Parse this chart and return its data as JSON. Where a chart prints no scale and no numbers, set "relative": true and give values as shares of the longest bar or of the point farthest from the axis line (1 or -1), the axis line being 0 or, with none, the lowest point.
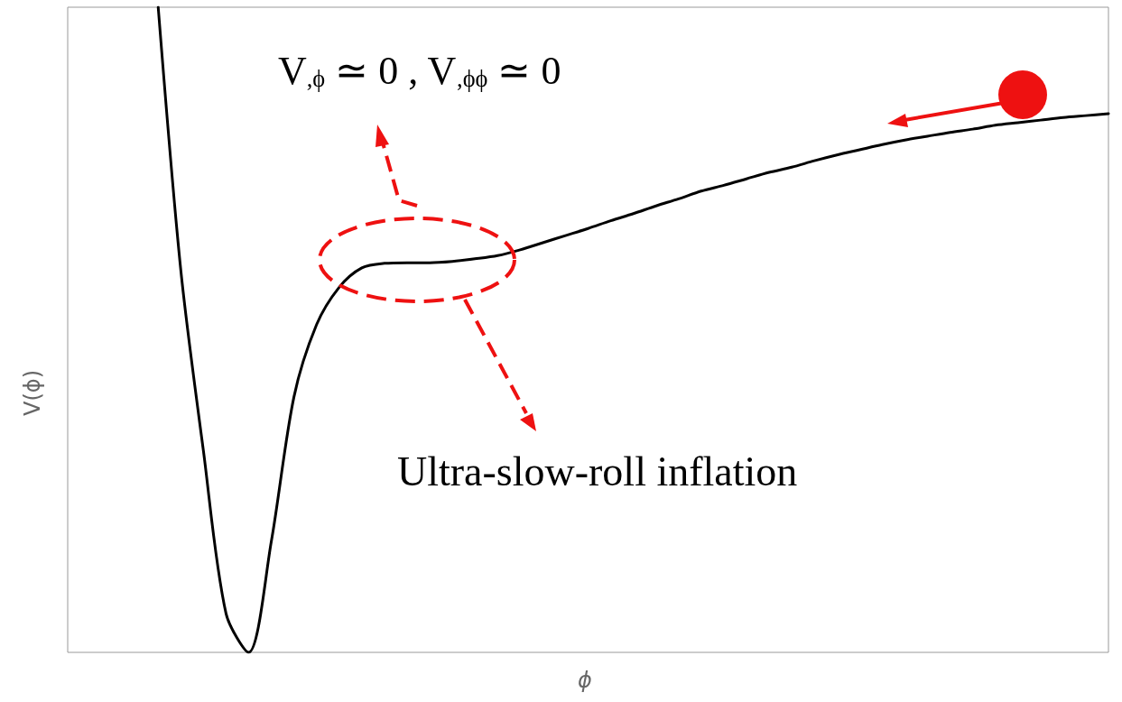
{
  "chart_data": {
    "type": "line",
    "relative": true,
    "marker": "none",
    "xlabel": "ϕ",
    "ylabel": "V(ϕ)",
    "annotations": [
      "V$_{,ϕ}$ ≃ 0 , V$_{,ϕϕ}$ ≃ 0",
      "Ultra-slow-roll inflation"
    ],
    "categories": [
      null,
      null,
      null,
      null,
      null,
      null,
      null,
      null,
      null,
      null,
      null,
      null,
      null,
      null,
      null,
      null,
      null,
      null,
      null,
      null,
      null,
      null,
      null,
      null,
      null,
      null,
      null,
      null,
      null,
      null,
      null,
      null,
      null,
      null,
      null,
      null,
      null,
      null,
      null,
      null,
      null,
      null,
      null,
      null,
      null,
      null,
      null
    ],
    "series": [
      {
        "color": "#000000",
        "values": [
          null,
          null,
          null,
          null,
          1.0,
          0.592,
          0.312,
          0.06,
          0.0,
          0.172,
          0.396,
          0.508,
          0.566,
          0.596,
          0.603,
          0.604,
          0.604,
          0.606,
          0.61,
          0.615,
          0.624,
          0.635,
          0.646,
          0.657,
          0.669,
          0.68,
          0.692,
          0.703,
          0.715,
          0.724,
          0.734,
          0.744,
          0.752,
          0.762,
          0.771,
          0.779,
          0.787,
          0.794,
          0.8,
          0.806,
          0.811,
          0.817,
          0.821,
          0.825,
          0.829,
          0.832,
          0.835
        ]
      }
    ]
  }
}
